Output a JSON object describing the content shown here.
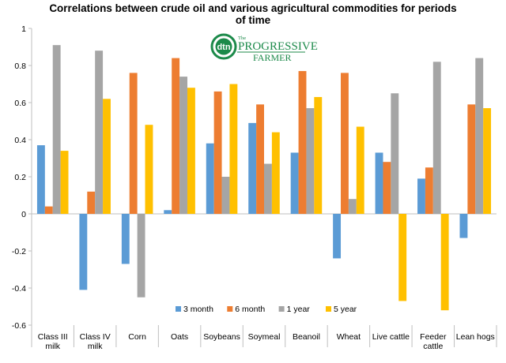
{
  "chart_data": {
    "type": "bar",
    "title_lines": [
      "Correlations between crude oil and various agricultural commodities for periods",
      "of time"
    ],
    "xlabel": "",
    "ylabel": "",
    "ylim": [
      -0.6,
      1
    ],
    "yticks": [
      -0.6,
      -0.4,
      -0.2,
      0,
      0.2,
      0.4,
      0.6,
      0.8,
      1
    ],
    "ytick_labels": [
      "-0.6",
      "-0.4",
      "-0.2",
      "0",
      "0.2",
      "0.4",
      "0.6",
      "0.8",
      "1"
    ],
    "grid": false,
    "legend_position": "bottom-center",
    "categories": [
      [
        "Class III",
        "milk"
      ],
      [
        "Class IV",
        "milk"
      ],
      [
        "Corn"
      ],
      [
        "Oats"
      ],
      [
        "Soybeans"
      ],
      [
        "Soymeal"
      ],
      [
        "Beanoil"
      ],
      [
        "Wheat"
      ],
      [
        "Live cattle"
      ],
      [
        "Feeder",
        "cattle"
      ],
      [
        "Lean hogs"
      ]
    ],
    "series": [
      {
        "name": "3 month",
        "color": "#5b9bd5",
        "values": [
          0.37,
          -0.41,
          -0.27,
          0.02,
          0.38,
          0.49,
          0.33,
          -0.24,
          0.33,
          0.19,
          -0.13
        ]
      },
      {
        "name": "6 month",
        "color": "#ed7d31",
        "values": [
          0.04,
          0.12,
          0.76,
          0.84,
          0.66,
          0.59,
          0.77,
          0.76,
          0.28,
          0.25,
          0.59
        ]
      },
      {
        "name": "1 year",
        "color": "#a5a5a5",
        "values": [
          0.91,
          0.88,
          -0.45,
          0.74,
          0.2,
          0.27,
          0.57,
          0.08,
          0.65,
          0.82,
          0.84
        ]
      },
      {
        "name": "5 year",
        "color": "#ffc000",
        "values": [
          0.34,
          0.62,
          0.48,
          0.68,
          0.7,
          0.44,
          0.63,
          0.47,
          -0.47,
          -0.52,
          0.57
        ]
      }
    ]
  },
  "logo": {
    "name": "dtn-progressive-farmer-logo",
    "badge_text": "dtn",
    "word_line1": "PROGRESSIVE",
    "word_line2": "FARMER",
    "prefix": "The",
    "color": "#1c8a4a"
  }
}
